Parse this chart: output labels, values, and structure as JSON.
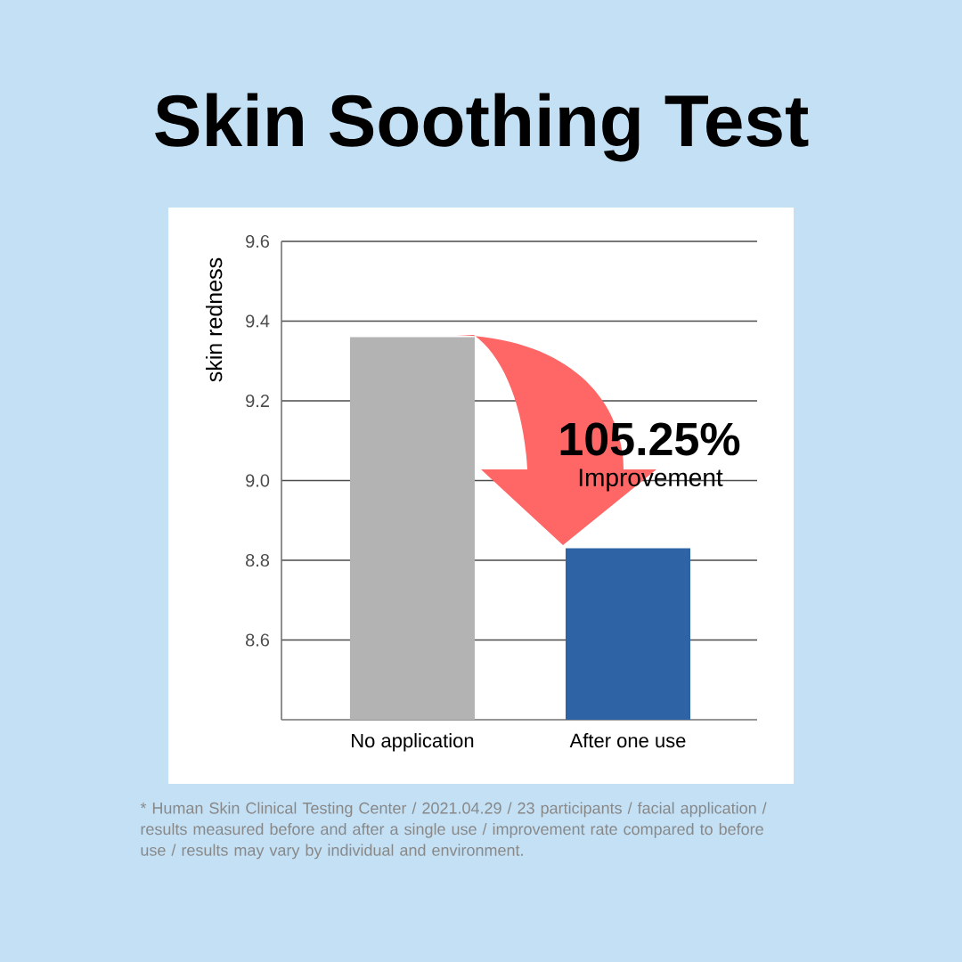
{
  "chart_data": {
    "type": "bar",
    "title": "Skin Soothing Test",
    "ylabel": "skin redness",
    "categories": [
      "No application",
      "After one use"
    ],
    "values": [
      9.36,
      8.83
    ],
    "colors": [
      "#b3b3b3",
      "#2e64a6"
    ],
    "ylim": [
      8.4,
      9.6
    ],
    "yticks": [
      8.6,
      8.8,
      {
        "value": 9.0,
        "label": "9.0"
      },
      9.2,
      9.4,
      9.6
    ],
    "grid": "y",
    "annotations": [
      "105.25%",
      "Improvement",
      "* Human Skin Clinical Testing Center / 2021.04.29 / 23 participants / facial application / results measured before and after a single use / improvement rate compared to before use / results may vary by individual and environment."
    ]
  }
}
